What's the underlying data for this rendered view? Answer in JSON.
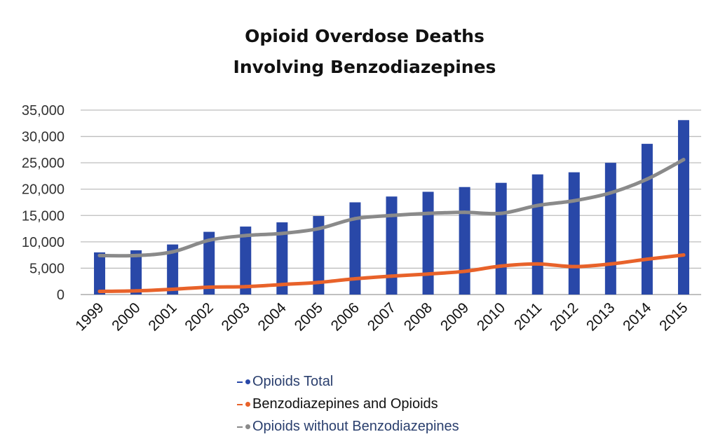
{
  "chart_data": {
    "type": "bar",
    "title_lines": [
      "Opioid  Overdose  Deaths",
      "Involving Benzodiazepines"
    ],
    "xlabel": "",
    "ylabel": "",
    "ylim": [
      0,
      35000
    ],
    "y_ticks": [
      "0",
      "5,000",
      "10,000",
      "15,000",
      "20,000",
      "25,000",
      "30,000",
      "35,000"
    ],
    "y_tick_values": [
      0,
      5000,
      10000,
      15000,
      20000,
      25000,
      30000,
      35000
    ],
    "grid": true,
    "legend_position": "bottom",
    "categories": [
      "1999",
      "2000",
      "2001",
      "2002",
      "2003",
      "2004",
      "2005",
      "2006",
      "2007",
      "2008",
      "2009",
      "2010",
      "2011",
      "2012",
      "2013",
      "2014",
      "2015"
    ],
    "series": [
      {
        "name": "Opioids Total",
        "kind": "bar",
        "color": "#2948a8",
        "values": [
          8000,
          8400,
          9500,
          11900,
          12900,
          13700,
          14900,
          17500,
          18600,
          19500,
          20400,
          21200,
          22800,
          23200,
          25000,
          28600,
          33100
        ]
      },
      {
        "name": "Benzodiazepines and Opioids",
        "kind": "line",
        "color": "#e8622a",
        "values": [
          600,
          700,
          1000,
          1400,
          1500,
          1900,
          2300,
          3000,
          3500,
          3900,
          4400,
          5400,
          5800,
          5300,
          5800,
          6700,
          7500
        ]
      },
      {
        "name": "Opioids without Benzodiazepines",
        "kind": "line",
        "color": "#8a8a8a",
        "values": [
          7400,
          7400,
          8100,
          10300,
          11200,
          11600,
          12500,
          14400,
          15000,
          15400,
          15600,
          15400,
          16900,
          17800,
          19300,
          21900,
          25600
        ]
      }
    ]
  }
}
